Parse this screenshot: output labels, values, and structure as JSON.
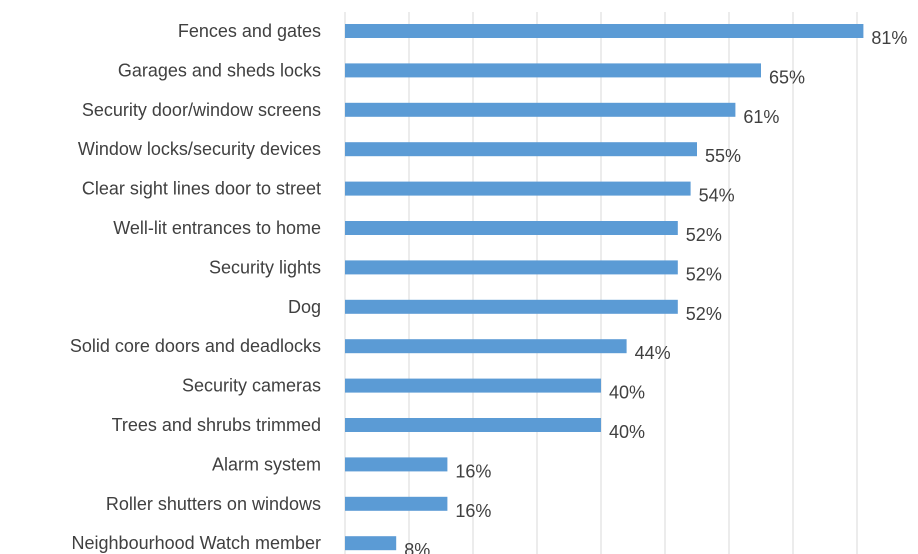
{
  "chart_data": {
    "type": "bar",
    "orientation": "horizontal",
    "categories": [
      "Fences and gates",
      "Garages and sheds locks",
      "Security door/window screens",
      "Window locks/security devices",
      "Clear sight lines door to street",
      "Well-lit entrances to home",
      "Security lights",
      "Dog",
      "Solid core doors and deadlocks",
      "Security cameras",
      "Trees and shrubs trimmed",
      "Alarm system",
      "Roller shutters on windows",
      "Neighbourhood Watch member"
    ],
    "values": [
      81,
      65,
      61,
      55,
      54,
      52,
      52,
      52,
      44,
      40,
      40,
      16,
      16,
      8
    ],
    "value_labels": [
      "81%",
      "65%",
      "61%",
      "55%",
      "54%",
      "52%",
      "52%",
      "52%",
      "44%",
      "40%",
      "40%",
      "16%",
      "16%",
      "8%"
    ],
    "xlim": [
      0,
      90
    ],
    "grid": true,
    "legend": "none",
    "title": "",
    "xlabel": "",
    "ylabel": "",
    "colors": {
      "bar": "#5b9bd5",
      "grid": "#d9d9d9",
      "text": "#404040"
    }
  }
}
